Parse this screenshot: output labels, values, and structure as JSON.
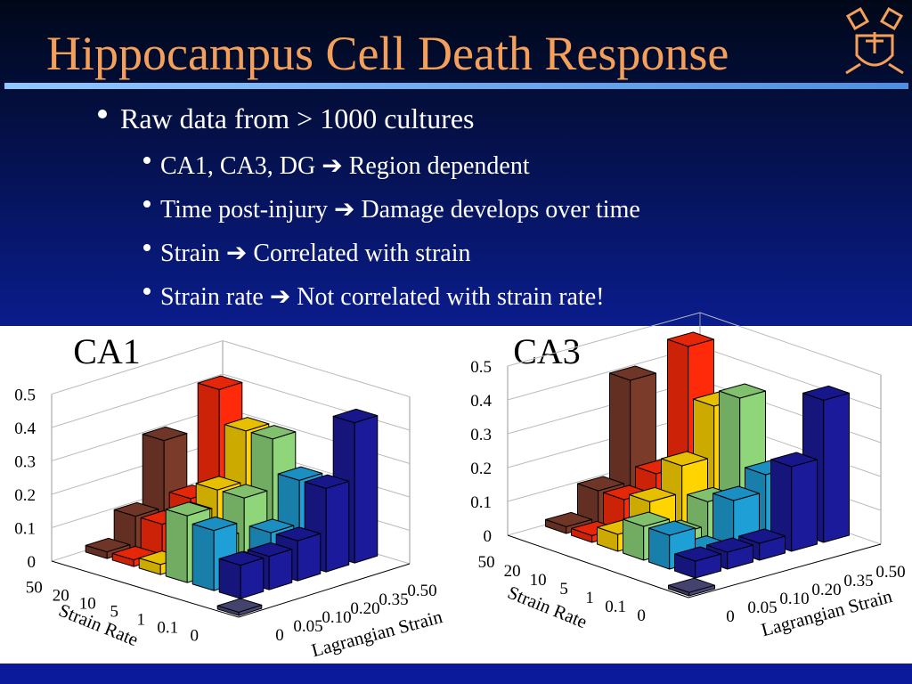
{
  "header": {
    "title": "Hippocampus Cell Death Response"
  },
  "bullets": [
    {
      "text": "Raw data from > 1000 cultures",
      "sub": [
        "CA1, CA3, DG ➔ Region dependent",
        "Time post-injury ➔ Damage develops over time",
        "Strain ➔ Correlated with strain",
        "Strain rate ➔ Not correlated with strain rate!"
      ]
    }
  ],
  "chart_data": [
    {
      "type": "bar3d",
      "title": "CA1",
      "xlabel": "Lagrangian Strain",
      "ylabel": "Strain Rate",
      "categories": [
        "0",
        "0.05",
        "0.10",
        "0.20",
        "0.35",
        "0.50"
      ],
      "rates": [
        "50",
        "20",
        "10",
        "5",
        "1",
        "0.1",
        "0"
      ],
      "zlim": [
        0,
        0.5
      ],
      "zticks": [
        0,
        0.1,
        0.2,
        0.3,
        0.4,
        0.5
      ],
      "grid": true,
      "series": [
        {
          "name": "50",
          "color": "#7b3b2a",
          "values": [
            null,
            0.02,
            0.1,
            0.3,
            null,
            null
          ]
        },
        {
          "name": "20",
          "color": "#ff2a0a",
          "values": [
            null,
            0.02,
            0.1,
            0.15,
            0.45,
            null
          ]
        },
        {
          "name": "10",
          "color": "#ffd400",
          "values": [
            null,
            0.03,
            0.15,
            0.2,
            0.35,
            null
          ]
        },
        {
          "name": "5",
          "color": "#8fd67a",
          "values": [
            null,
            0.2,
            0.1,
            0.2,
            0.35,
            null
          ]
        },
        {
          "name": "1",
          "color": "#1e9fd6",
          "values": [
            null,
            0.18,
            0.05,
            0.12,
            0.25,
            null
          ]
        },
        {
          "name": "0.1",
          "color": "#1a1a9a",
          "values": [
            null,
            0.1,
            0.1,
            0.12,
            0.25,
            0.42
          ]
        },
        {
          "name": "0",
          "color": "#4a4a7a",
          "values": [
            0.01,
            null,
            null,
            null,
            null,
            null
          ]
        }
      ]
    },
    {
      "type": "bar3d",
      "title": "CA3",
      "xlabel": "Lagrangian Strain",
      "ylabel": "Strain Rate",
      "categories": [
        "0",
        "0.05",
        "0.10",
        "0.20",
        "0.35",
        "0.50"
      ],
      "rates": [
        "50",
        "20",
        "10",
        "5",
        "1",
        "0.1",
        "0"
      ],
      "zlim": [
        0,
        0.5
      ],
      "zticks": [
        0,
        0.1,
        0.2,
        0.3,
        0.4,
        0.5
      ],
      "grid": true,
      "series": [
        {
          "name": "50",
          "color": "#7b3b2a",
          "values": [
            null,
            0.02,
            0.1,
            0.4,
            0.1,
            null
          ]
        },
        {
          "name": "20",
          "color": "#ff2a0a",
          "values": [
            null,
            0.02,
            0.1,
            0.15,
            0.5,
            null
          ]
        },
        {
          "name": "10",
          "color": "#ffd400",
          "values": [
            null,
            0.05,
            0.12,
            0.2,
            0.35,
            null
          ]
        },
        {
          "name": "5",
          "color": "#8fd67a",
          "values": [
            null,
            0.1,
            0.05,
            0.12,
            0.4,
            null
          ]
        },
        {
          "name": "1",
          "color": "#1e9fd6",
          "values": [
            null,
            0.1,
            0.03,
            0.15,
            0.2,
            null
          ]
        },
        {
          "name": "0.1",
          "color": "#1a1a9a",
          "values": [
            null,
            0.05,
            0.05,
            0.05,
            0.25,
            0.42
          ]
        },
        {
          "name": "0",
          "color": "#4a4a7a",
          "values": [
            0.01,
            null,
            null,
            null,
            null,
            null
          ]
        }
      ]
    }
  ]
}
